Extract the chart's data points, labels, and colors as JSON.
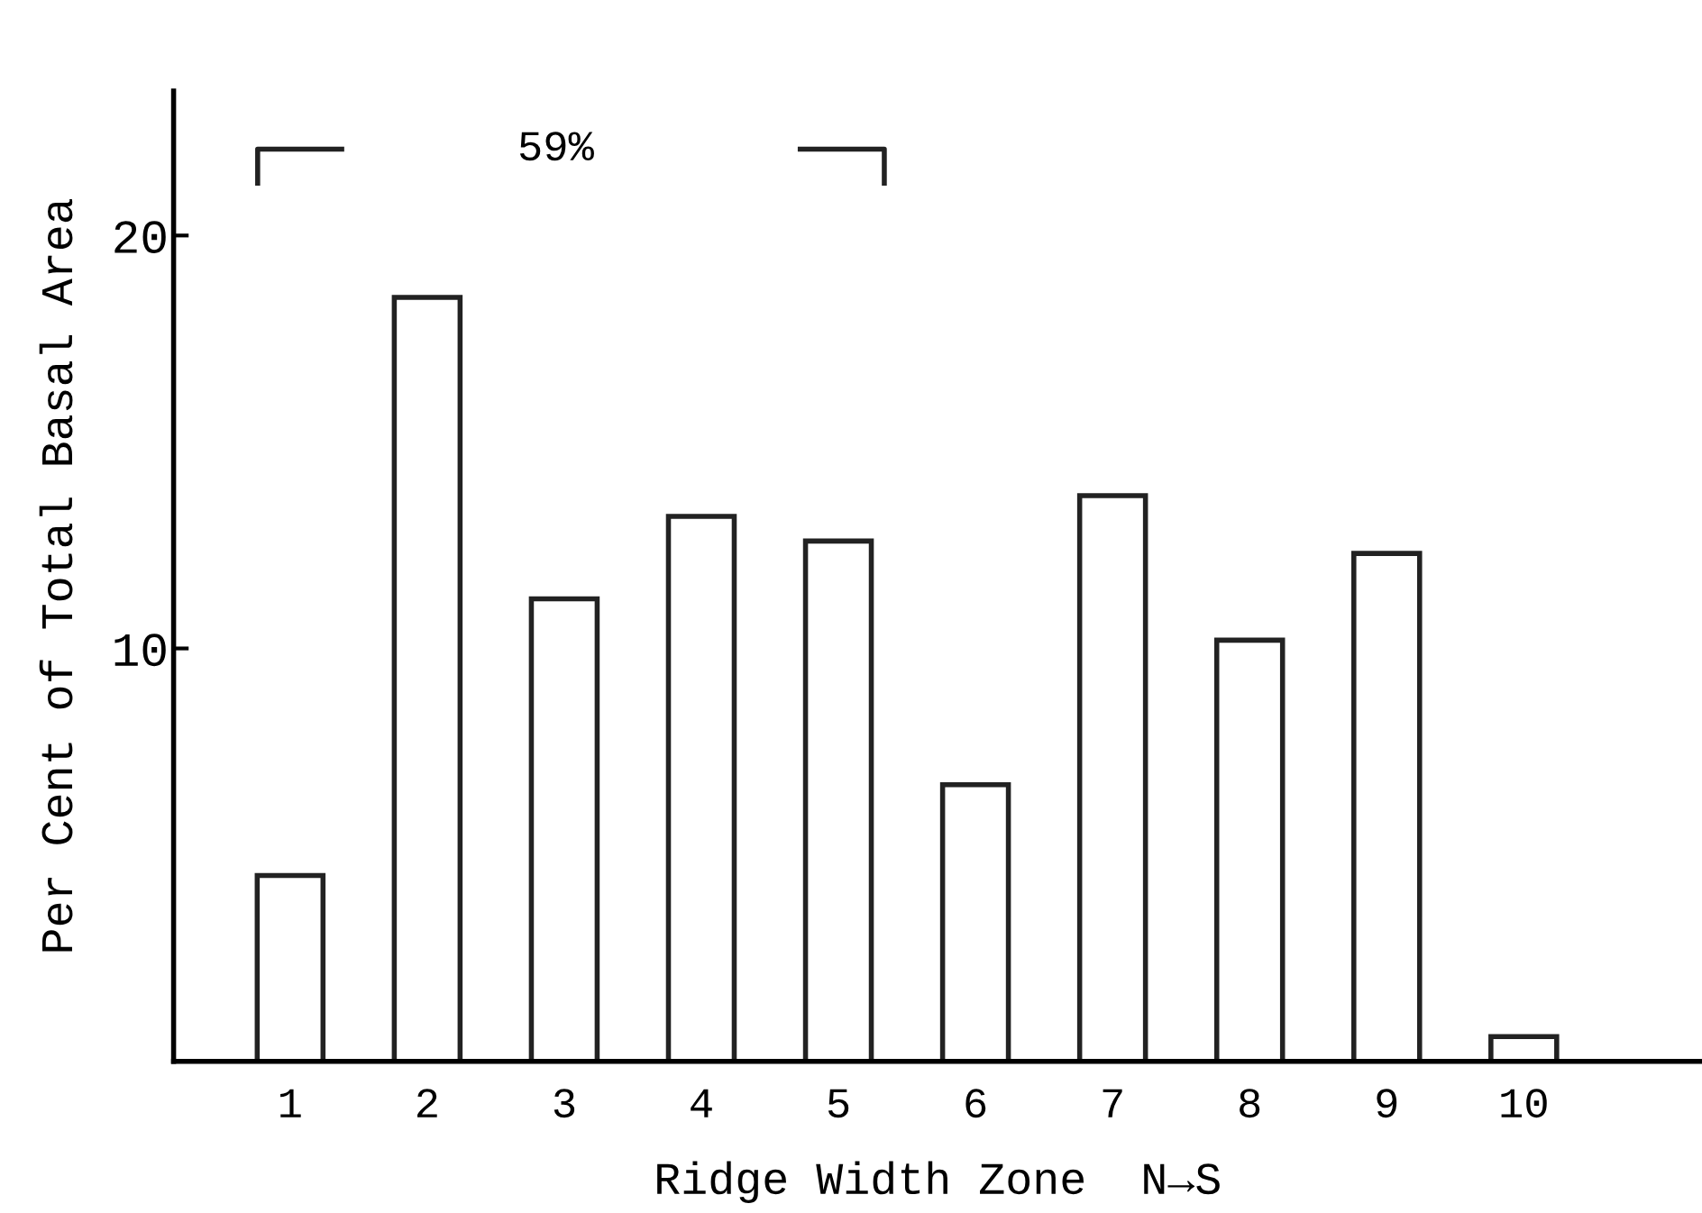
{
  "chart_data": {
    "type": "bar",
    "xlabel": "Ridge Width Zone  N→S",
    "ylabel": "Per Cent of Total Basal Area",
    "categories": [
      "1",
      "2",
      "3",
      "4",
      "5",
      "6",
      "7",
      "8",
      "9",
      "10"
    ],
    "values": [
      4.5,
      18.5,
      11.2,
      13.2,
      12.6,
      6.7,
      13.7,
      10.2,
      12.3,
      0.6
    ],
    "color": "#ffffff",
    "ylim": [
      0,
      23.5
    ],
    "yticks": [
      10,
      20
    ],
    "annotations": [
      "59%"
    ],
    "grid": false,
    "legend": false
  }
}
